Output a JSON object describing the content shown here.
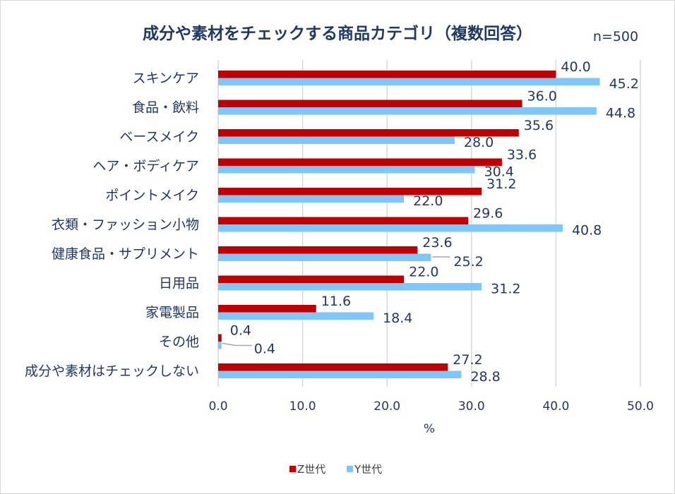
{
  "chart_data": {
    "type": "bar",
    "orientation": "horizontal",
    "title": "成分や素材をチェックする商品カテゴリ（複数回答）",
    "annotation": "n=500",
    "categories": [
      "スキンケア",
      "食品・飲料",
      "ベースメイク",
      "ヘア・ボディケア",
      "ポイントメイク",
      "衣類・ファッション小物",
      "健康食品・サプリメント",
      "日用品",
      "家電製品",
      "その他",
      "成分や素材はチェックしない"
    ],
    "series": [
      {
        "name": "Z世代",
        "color": "#c00000",
        "values": [
          40.0,
          36.0,
          35.6,
          33.6,
          31.2,
          29.6,
          23.6,
          22.0,
          11.6,
          0.4,
          27.2
        ]
      },
      {
        "name": "Y世代",
        "color": "#7fc6fa",
        "values": [
          45.2,
          44.8,
          28.0,
          30.4,
          22.0,
          40.8,
          25.2,
          31.2,
          18.4,
          0.4,
          28.8
        ]
      }
    ],
    "xlabel": "%",
    "ylabel": "",
    "xlim": [
      0,
      50
    ],
    "xticks": [
      "0.0",
      "10.0",
      "20.0",
      "30.0",
      "40.0",
      "50.0"
    ],
    "grid": "vertical",
    "legend": "bottom",
    "label_color": "#1f3864"
  }
}
